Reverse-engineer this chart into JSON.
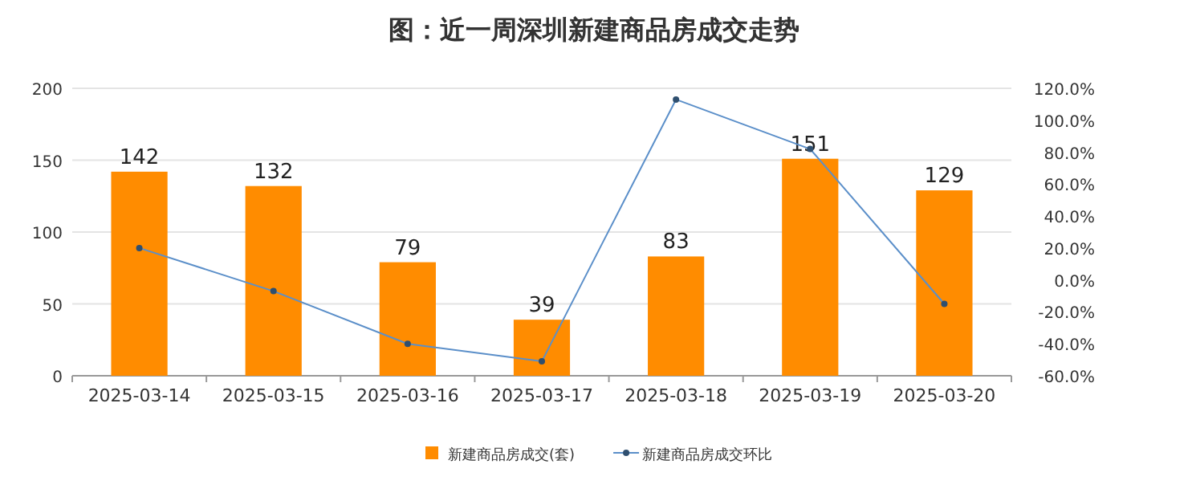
{
  "chart_data": {
    "type": "bar",
    "title": "图：近一周深圳新建商品房成交走势",
    "categories": [
      "2025-03-14",
      "2025-03-15",
      "2025-03-16",
      "2025-03-17",
      "2025-03-18",
      "2025-03-19",
      "2025-03-20"
    ],
    "series": [
      {
        "name": "新建商品房成交(套)",
        "color": "#ff8c00",
        "values": [
          142,
          132,
          79,
          39,
          83,
          151,
          129
        ],
        "value_labels": [
          "142",
          "132",
          "79",
          "39",
          "83",
          "151",
          "129"
        ]
      },
      {
        "name": "新建商品房成交环比",
        "type": "line",
        "axis": "y2",
        "color": "#5b8fc9",
        "values": [
          20,
          -7,
          -40,
          -51,
          113,
          82,
          -15
        ]
      }
    ],
    "ylim": [
      0,
      200
    ],
    "yticks": [
      0,
      50,
      100,
      150,
      200
    ],
    "y2lim": [
      -60,
      120
    ],
    "y2ticks": [
      {
        "value": -60,
        "label": "-60.0%"
      },
      {
        "value": -40,
        "label": "-40.0%"
      },
      {
        "value": -20,
        "label": "-20.0%"
      },
      {
        "value": 0,
        "label": "0.0%"
      },
      {
        "value": 20,
        "label": "20.0%"
      },
      {
        "value": 40,
        "label": "40.0%"
      },
      {
        "value": 60,
        "label": "60.0%"
      },
      {
        "value": 80,
        "label": "80.0%"
      },
      {
        "value": 100,
        "label": "100.0%"
      },
      {
        "value": 120,
        "label": "120.0%"
      }
    ],
    "grid": "y",
    "legend": "bottom",
    "marker": "circle"
  }
}
